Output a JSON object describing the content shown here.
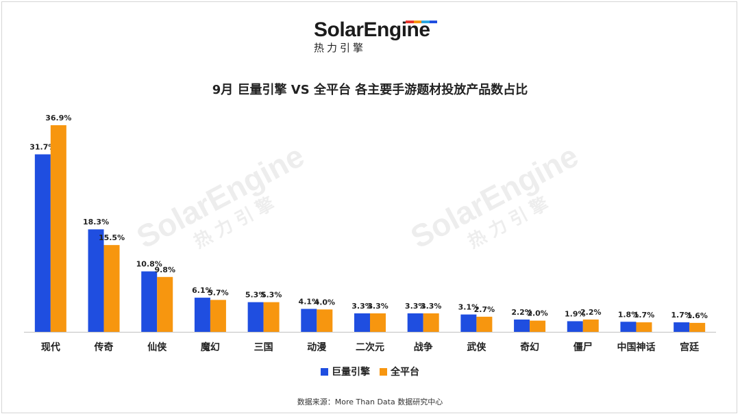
{
  "brand": {
    "name": "SolarEngine",
    "subtitle": "热力引擎"
  },
  "colors": {
    "series1": "#1f4ee0",
    "series2": "#f7960f",
    "text": "#222222",
    "axis": "#bfbfbf"
  },
  "chart_data": {
    "type": "bar",
    "title": "9月 巨量引擎  VS 全平台 各主要手游题材投放产品数占比",
    "categories": [
      "现代",
      "传奇",
      "仙侠",
      "魔幻",
      "三国",
      "动漫",
      "二次元",
      "战争",
      "武侠",
      "奇幻",
      "僵尸",
      "中国神话",
      "宫廷"
    ],
    "series": [
      {
        "name": "巨量引擎",
        "values": [
          31.7,
          18.3,
          10.8,
          6.1,
          5.3,
          4.1,
          3.3,
          3.3,
          3.1,
          2.2,
          1.9,
          1.8,
          1.7
        ],
        "labels": [
          "31.7%",
          "18.3%",
          "10.8%",
          "6.1%",
          "5.3%",
          "4.1%",
          "3.3%",
          "3.3%",
          "3.1%",
          "2.2%",
          "1.9%",
          "1.8%",
          "1.7%"
        ]
      },
      {
        "name": "全平台",
        "values": [
          36.9,
          15.5,
          9.8,
          5.7,
          5.3,
          4.0,
          3.3,
          3.3,
          2.7,
          2.0,
          2.2,
          1.7,
          1.6
        ],
        "labels": [
          "36.9%",
          "15.5%",
          "9.8%",
          "5.7%",
          "5.3%",
          "4.0%",
          "3.3%",
          "3.3%",
          "2.7%",
          "2.0%",
          "2.2%",
          "1.7%",
          "1.6%"
        ]
      }
    ],
    "ylim": [
      0,
      40
    ],
    "grid": false,
    "legend": "bottom"
  },
  "source": "数据来源：More Than Data 数据研究中心"
}
